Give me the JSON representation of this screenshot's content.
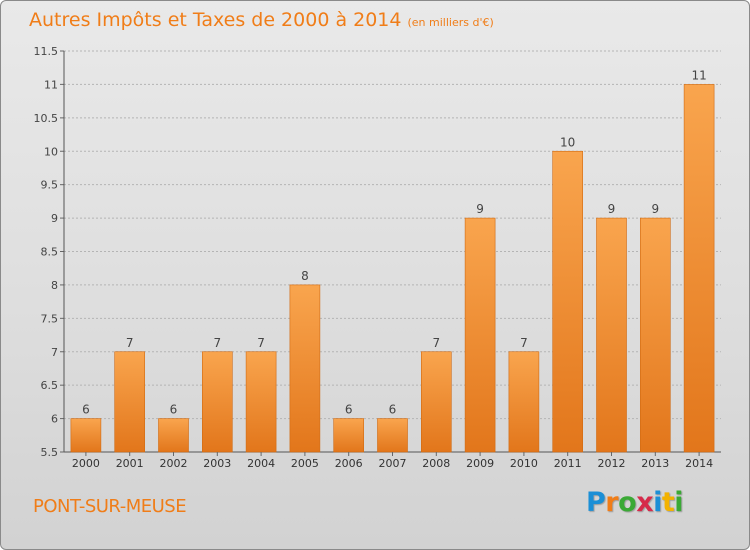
{
  "chart_data": {
    "type": "bar",
    "title": "Autres Impôts et Taxes de 2000 à 2014",
    "subtitle": "(en milliers d'€)",
    "xlabel": "",
    "ylabel": "",
    "categories": [
      "2000",
      "2001",
      "2002",
      "2003",
      "2004",
      "2005",
      "2006",
      "2007",
      "2008",
      "2009",
      "2010",
      "2011",
      "2012",
      "2013",
      "2014"
    ],
    "values": [
      6,
      7,
      6,
      7,
      7,
      8,
      6,
      6,
      7,
      9,
      7,
      10,
      9,
      9,
      11
    ],
    "value_labels": [
      "6",
      "7",
      "6",
      "7",
      "7",
      "8",
      "6",
      "6",
      "7",
      "9",
      "7",
      "10",
      "9",
      "9",
      "11"
    ],
    "ylim": [
      5.5,
      11.5
    ],
    "yticks": [
      5.5,
      6,
      6.5,
      7,
      7.5,
      8,
      8.5,
      9,
      9.5,
      10,
      10.5,
      11,
      11.5
    ],
    "ytick_labels": [
      "5.5",
      "6",
      "6.5",
      "7",
      "7.5",
      "8",
      "8.5",
      "9",
      "9.5",
      "10",
      "10.5",
      "11",
      "11.5"
    ],
    "grid": true,
    "colors": {
      "bar_light": "#f9a54e",
      "bar_dark": "#e2761b",
      "grid": "#b4b4b4",
      "text": "#f07d18"
    }
  },
  "footer": {
    "commune": "PONT-SUR-MEUSE",
    "brand_letters": [
      "P",
      "r",
      "o",
      "x",
      "i",
      "t",
      "i"
    ],
    "brand_colors": [
      "#1b8fd6",
      "#f07d18",
      "#3aa935",
      "#d62a4a",
      "#1b8fd6",
      "#f3b200",
      "#3aa935"
    ]
  }
}
